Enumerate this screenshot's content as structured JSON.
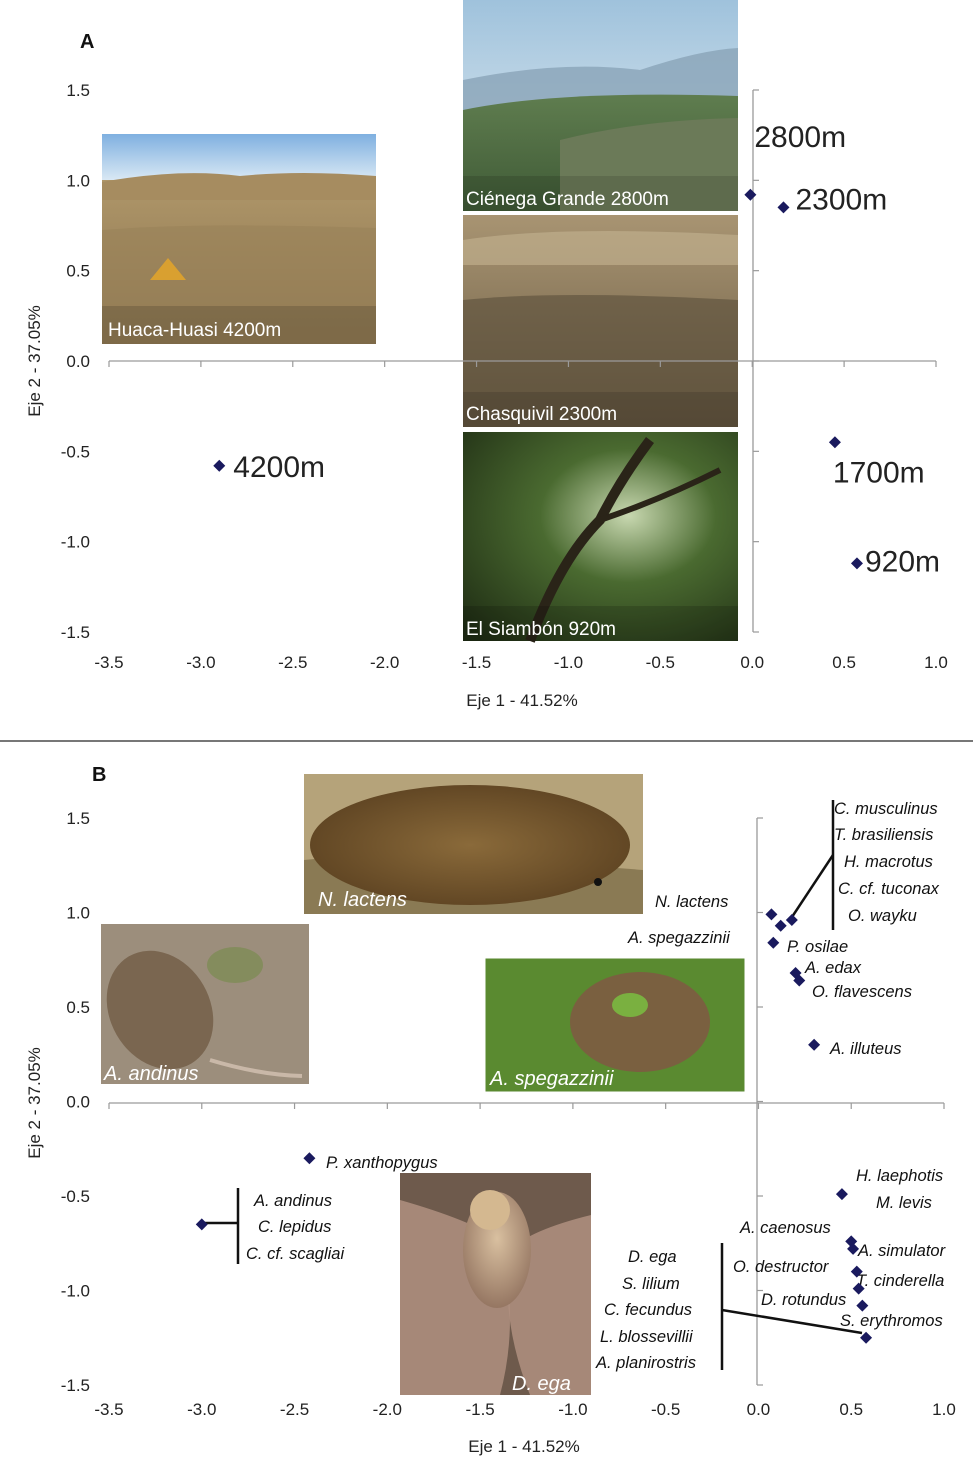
{
  "chart_data": [
    {
      "panel": "A",
      "type": "scatter",
      "xlabel": "Eje 1 - 41.52%",
      "ylabel": "Eje 2 - 37.05%",
      "xlim": [
        -3.5,
        1.0
      ],
      "ylim": [
        -1.5,
        1.5
      ],
      "xticks": [
        "-3.5",
        "-3.0",
        "-2.5",
        "-2.0",
        "-1.5",
        "-1.0",
        "-0.5",
        "0.0",
        "0.5",
        "1.0"
      ],
      "yticks": [
        "1.5",
        "1.0",
        "0.5",
        "0.0",
        "-0.5",
        "-1.0",
        "-1.5"
      ],
      "marker_color": "#1a1a5e",
      "points": [
        {
          "x": -2.9,
          "y": -0.58,
          "label": "4200m"
        },
        {
          "x": -0.01,
          "y": 0.92,
          "label": "2800m"
        },
        {
          "x": 0.17,
          "y": 0.85,
          "label": "2300m"
        },
        {
          "x": 0.45,
          "y": -0.45,
          "label": "1700m"
        },
        {
          "x": 0.57,
          "y": -1.12,
          "label": "920m"
        }
      ],
      "photos": [
        {
          "name": "huaca-huasi-photo",
          "caption": "Huaca-Huasi 4200m"
        },
        {
          "name": "cienega-grande-photo",
          "caption": "Ciénega Grande 2800m"
        },
        {
          "name": "chasquivil-photo",
          "caption": "Chasquivil 2300m"
        },
        {
          "name": "el-siambon-photo",
          "caption": "El Siambón 920m"
        }
      ]
    },
    {
      "panel": "B",
      "type": "scatter",
      "xlabel": "Eje 1 - 41.52%",
      "ylabel": "Eje 2 - 37.05%",
      "xlim": [
        -3.5,
        1.0
      ],
      "ylim": [
        -1.5,
        1.5
      ],
      "xticks": [
        "-3.5",
        "-3.0",
        "-2.5",
        "-2.0",
        "-1.5",
        "-1.0",
        "-0.5",
        "0.0",
        "0.5",
        "1.0"
      ],
      "yticks": [
        "1.5",
        "1.0",
        "0.5",
        "0.0",
        "-0.5",
        "-1.0",
        "-1.5"
      ],
      "marker_color": "#1a1a5e",
      "points": [
        {
          "x": 0.07,
          "y": 0.99
        },
        {
          "x": 0.12,
          "y": 0.93
        },
        {
          "x": 0.18,
          "y": 0.96
        },
        {
          "x": 0.08,
          "y": 0.84
        },
        {
          "x": 0.2,
          "y": 0.68
        },
        {
          "x": 0.22,
          "y": 0.64
        },
        {
          "x": 0.3,
          "y": 0.3
        },
        {
          "x": -2.42,
          "y": -0.3
        },
        {
          "x": -3.0,
          "y": -0.65
        },
        {
          "x": 0.45,
          "y": -0.49
        },
        {
          "x": 0.5,
          "y": -0.74
        },
        {
          "x": 0.51,
          "y": -0.78
        },
        {
          "x": 0.53,
          "y": -0.9
        },
        {
          "x": 0.54,
          "y": -0.99
        },
        {
          "x": 0.56,
          "y": -1.08
        },
        {
          "x": 0.58,
          "y": -1.25
        }
      ],
      "labels": {
        "group_top": [
          "C. musculinus",
          "T. brasiliensis",
          "H. macrotus",
          "C. cf. tuconax",
          "O. wayku"
        ],
        "n_lactens": "N. lactens",
        "a_spegazzinii": "A. spegazzinii",
        "p_osilae": "P. osilae",
        "a_edax": "A. edax",
        "o_flavescens": "O. flavescens",
        "a_illuteus": "A. illuteus",
        "p_xanthopygus": "P. xanthopygus",
        "group_left": [
          "A. andinus",
          "C. lepidus",
          "C. cf. scagliai"
        ],
        "h_laephotis": "H. laephotis",
        "m_levis": "M. levis",
        "a_caenosus": "A. caenosus",
        "a_simulator": "A. simulator",
        "o_destructor": "O. destructor",
        "t_cinderella": "T. cinderella",
        "d_rotundus": "D. rotundus",
        "s_erythromos": "S. erythromos",
        "group_bottom": [
          "D. ega",
          "S. lilium",
          "C. fecundus",
          "L. blossevillii",
          "A. planirostris"
        ]
      },
      "photos": [
        {
          "name": "n-lactens-photo",
          "caption": "N. lactens"
        },
        {
          "name": "a-andinus-photo",
          "caption": "A. andinus"
        },
        {
          "name": "a-spegazzinii-photo",
          "caption": "A. spegazzinii"
        },
        {
          "name": "d-ega-photo",
          "caption": "D. ega"
        }
      ]
    }
  ]
}
